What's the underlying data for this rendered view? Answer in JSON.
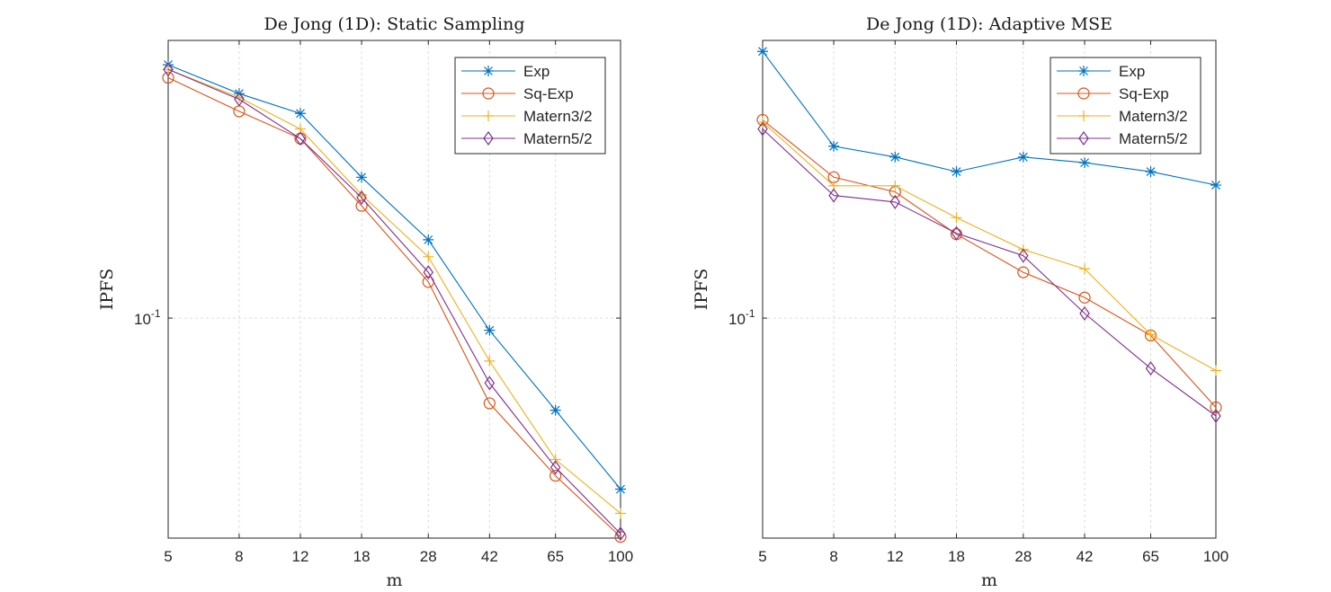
{
  "chart_data": [
    {
      "type": "line",
      "title": "De Jong (1D): Static Sampling",
      "xlabel": "m",
      "ylabel": "IPFS",
      "x_scale": "log",
      "y_scale": "log",
      "x": [
        5,
        8,
        12,
        18,
        28,
        42,
        65,
        100
      ],
      "xticks": [
        "5",
        "8",
        "12",
        "18",
        "28",
        "42",
        "65",
        "100"
      ],
      "ylim": [
        0.0245,
        0.59
      ],
      "ytick_label": {
        "base": "10",
        "exp": "-1",
        "value": 0.1
      },
      "grid": true,
      "legend_position": "top-right",
      "series": [
        {
          "name": "Exp",
          "color": "#0072BD",
          "marker": "asterisk",
          "values": [
            0.505,
            0.42,
            0.37,
            0.246,
            0.165,
            0.0925,
            0.0555,
            0.0335
          ]
        },
        {
          "name": "Sq-Exp",
          "color": "#D95319",
          "marker": "circle",
          "values": [
            0.465,
            0.375,
            0.315,
            0.205,
            0.126,
            0.058,
            0.0365,
            0.0247
          ]
        },
        {
          "name": "Matern3/2",
          "color": "#EDB120",
          "marker": "plus",
          "values": [
            0.49,
            0.41,
            0.335,
            0.22,
            0.148,
            0.076,
            0.0405,
            0.0287
          ]
        },
        {
          "name": "Matern5/2",
          "color": "#7E2F8E",
          "marker": "diamond",
          "values": [
            0.49,
            0.405,
            0.315,
            0.216,
            0.134,
            0.066,
            0.0385,
            0.0252
          ]
        }
      ]
    },
    {
      "type": "line",
      "title": "De Jong (1D): Adaptive MSE",
      "xlabel": "m",
      "ylabel": "IPFS",
      "x_scale": "log",
      "y_scale": "log",
      "x": [
        5,
        8,
        12,
        18,
        28,
        42,
        65,
        100
      ],
      "xticks": [
        "5",
        "8",
        "12",
        "18",
        "28",
        "42",
        "65",
        "100"
      ],
      "ylim": [
        0.0245,
        0.59
      ],
      "ytick_label": {
        "base": "10",
        "exp": "-1",
        "value": 0.1
      },
      "grid": true,
      "legend_position": "top-right",
      "series": [
        {
          "name": "Exp",
          "color": "#0072BD",
          "marker": "asterisk",
          "values": [
            0.55,
            0.3,
            0.28,
            0.255,
            0.28,
            0.27,
            0.255,
            0.234
          ]
        },
        {
          "name": "Sq-Exp",
          "color": "#D95319",
          "marker": "circle",
          "values": [
            0.355,
            0.246,
            0.224,
            0.171,
            0.134,
            0.114,
            0.0895,
            0.0565
          ]
        },
        {
          "name": "Matern3/2",
          "color": "#EDB120",
          "marker": "plus",
          "values": [
            0.35,
            0.233,
            0.233,
            0.19,
            0.155,
            0.137,
            0.09,
            0.0715
          ]
        },
        {
          "name": "Matern5/2",
          "color": "#7E2F8E",
          "marker": "diamond",
          "values": [
            0.335,
            0.219,
            0.21,
            0.172,
            0.149,
            0.103,
            0.0725,
            0.0535
          ]
        }
      ]
    }
  ]
}
